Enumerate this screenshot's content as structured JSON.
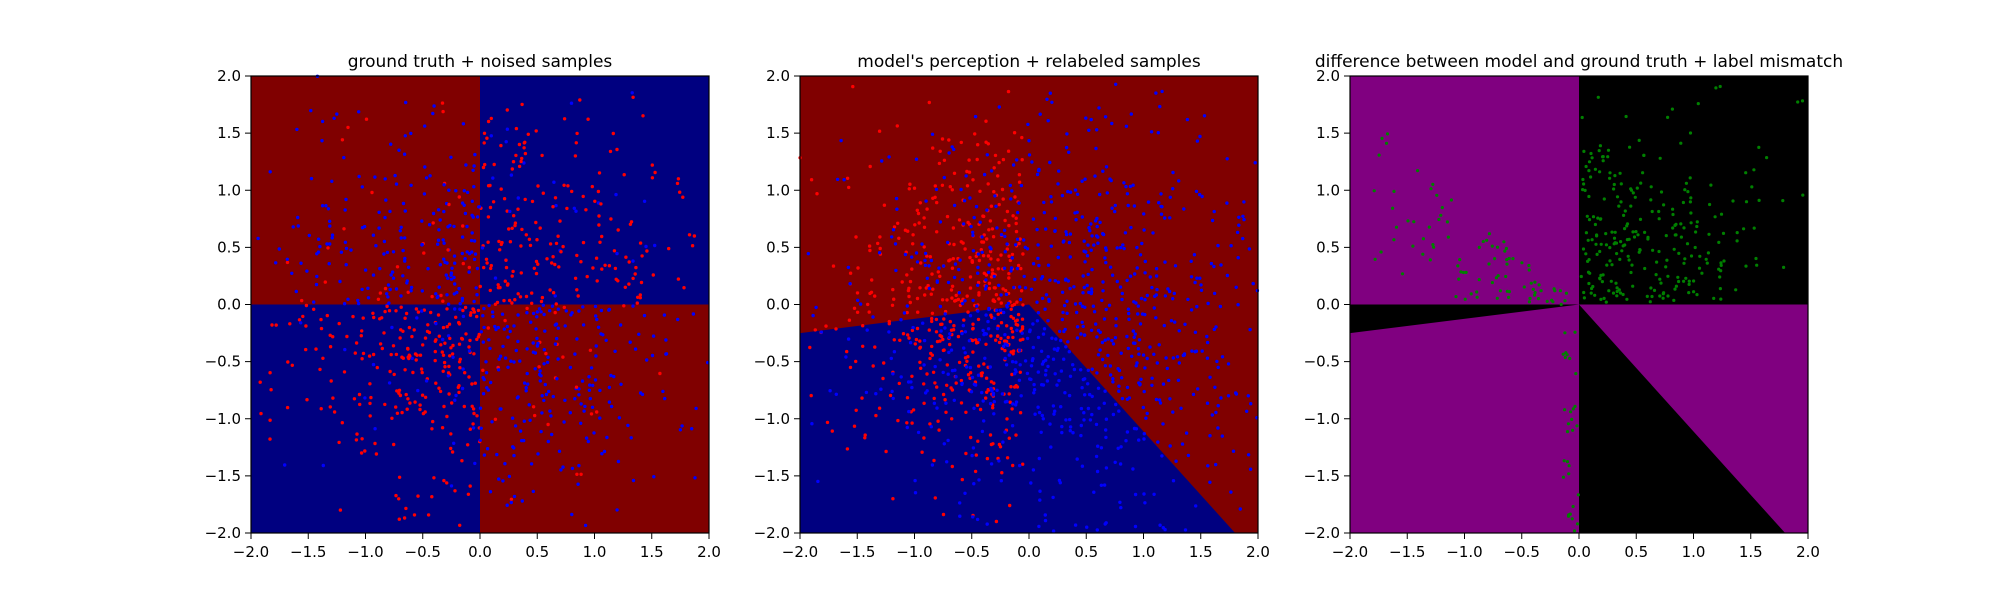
{
  "chart_data": [
    {
      "type": "scatter",
      "title": "ground truth + noised samples",
      "xlabel": "",
      "ylabel": "",
      "xlim": [
        -2.0,
        2.0
      ],
      "ylim": [
        -2.0,
        2.0
      ],
      "xticks": [
        "−2.0",
        "−1.5",
        "−1.0",
        "−0.5",
        "0.0",
        "0.5",
        "1.0",
        "1.5",
        "2.0"
      ],
      "yticks": [
        "−2.0",
        "−1.5",
        "−1.0",
        "−0.5",
        "0.0",
        "0.5",
        "1.0",
        "1.5",
        "2.0"
      ],
      "grid": false,
      "background_regions": [
        {
          "region": "x<0, y>0",
          "color": "#800000"
        },
        {
          "region": "x>0, y>0",
          "color": "#000080"
        },
        {
          "region": "x<0, y<0",
          "color": "#000080"
        },
        {
          "region": "x>0, y<0",
          "color": "#800000"
        }
      ],
      "series": [
        {
          "color": "#ff0000",
          "point_count": 500,
          "distribution": "concentrated in quadrants x>0,y>0 and x<0,y<0"
        },
        {
          "color": "#0000ff",
          "point_count": 500,
          "distribution": "concentrated in quadrants x<0,y>0 and x>0,y<0"
        }
      ]
    },
    {
      "type": "scatter",
      "title": "model's perception + relabeled samples",
      "xlabel": "",
      "ylabel": "",
      "xlim": [
        -2.0,
        2.0
      ],
      "ylim": [
        -2.0,
        2.0
      ],
      "xticks": [
        "−2.0",
        "−1.5",
        "−1.0",
        "−0.5",
        "0.0",
        "0.5",
        "1.0",
        "1.5",
        "2.0"
      ],
      "yticks": [
        "−2.0",
        "−1.5",
        "−1.0",
        "−0.5",
        "0.0",
        "0.5",
        "1.0",
        "1.5",
        "2.0"
      ],
      "grid": false,
      "decision_boundary": {
        "vertex": [
          0.0,
          0.0
        ],
        "left_edge_point": [
          -2.0,
          -0.25
        ],
        "bottom_edge_point": [
          1.8,
          -2.0
        ],
        "inside_color": "#000080",
        "outside_color": "#800000"
      },
      "series": [
        {
          "color": "#ff0000",
          "point_count": 500,
          "distribution": "mostly x<0"
        },
        {
          "color": "#0000ff",
          "point_count": 900,
          "distribution": "mostly x>0 and below boundary"
        }
      ]
    },
    {
      "type": "scatter",
      "title": "difference between model and ground truth + label mismatch",
      "xlabel": "",
      "ylabel": "",
      "xlim": [
        -2.0,
        2.0
      ],
      "ylim": [
        -2.0,
        2.0
      ],
      "xticks": [
        "−2.0",
        "−1.5",
        "−1.0",
        "−0.5",
        "0.0",
        "0.5",
        "1.0",
        "1.5",
        "2.0"
      ],
      "yticks": [
        "−2.0",
        "−1.5",
        "−1.0",
        "−0.5",
        "0.0",
        "0.5",
        "1.0",
        "1.5",
        "2.0"
      ],
      "grid": false,
      "regions": {
        "match_color": "#800080",
        "mismatch_color": "#000000"
      },
      "series": [
        {
          "color": "#008000",
          "point_count": 380,
          "distribution": "x>0,y>0 quadrant and x<0,y>0 wedge, plus near x=0, y<0"
        }
      ]
    }
  ]
}
